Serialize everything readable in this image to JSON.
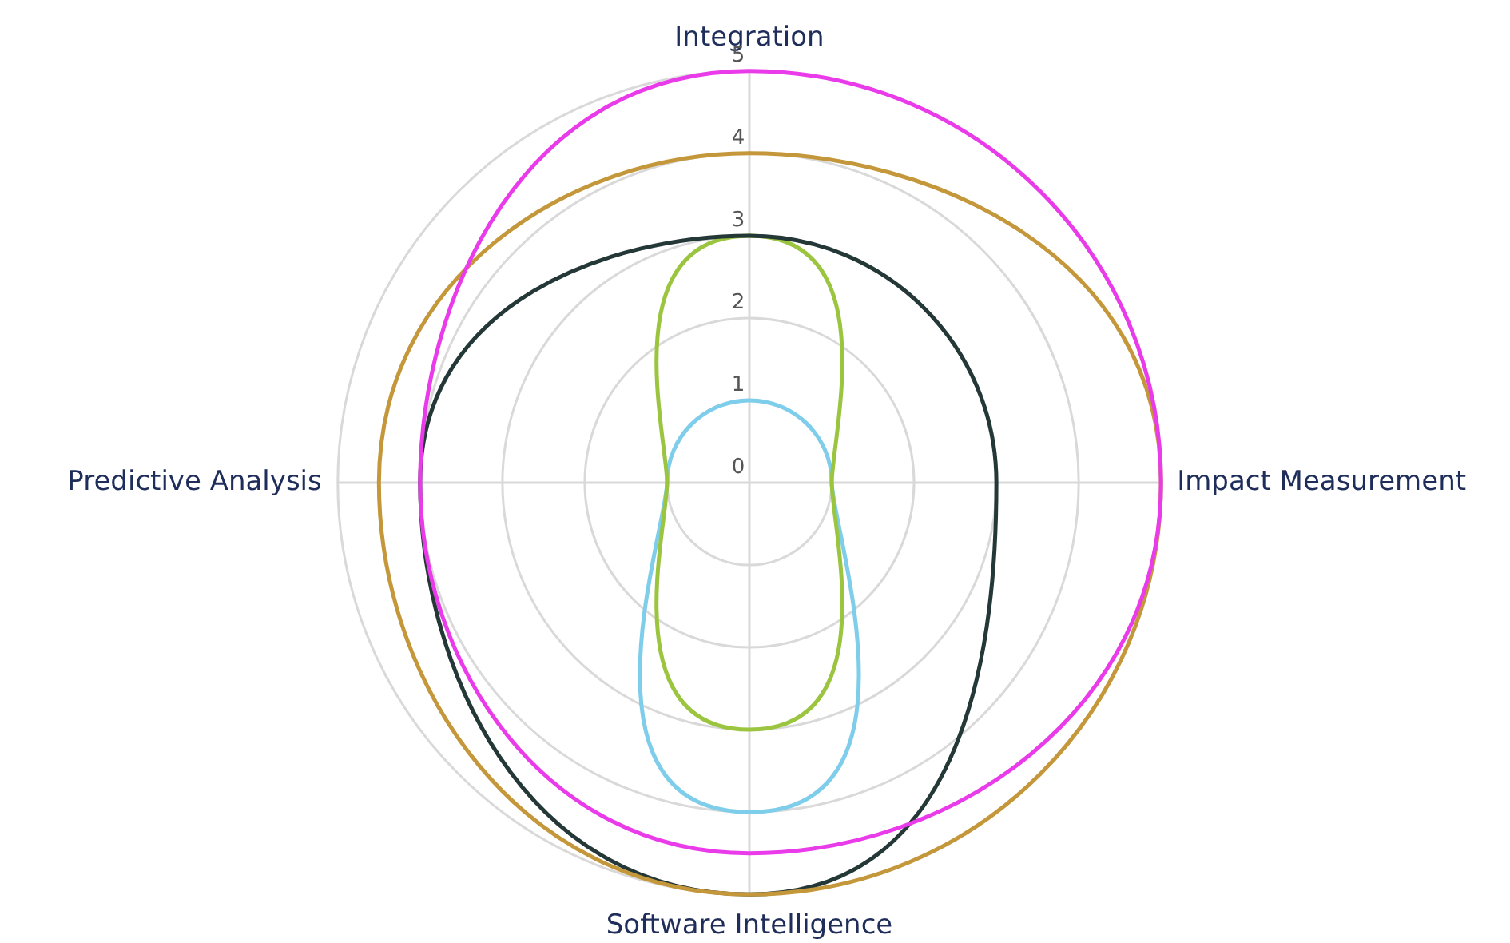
{
  "chart_data": {
    "type": "radar",
    "categories": [
      "Integration",
      "Impact Measurement",
      "Software Intelligence",
      "Predictive Analysis"
    ],
    "series": [
      {
        "color": "#e93be9",
        "values": [
          5,
          5,
          4.5,
          4
        ]
      },
      {
        "color": "#c4973a",
        "values": [
          4,
          5,
          5,
          4.5
        ]
      },
      {
        "color": "#253838",
        "values": [
          3,
          3,
          5,
          4
        ]
      },
      {
        "color": "#9bc43f",
        "values": [
          3,
          1,
          3,
          1
        ]
      },
      {
        "color": "#7ecdea",
        "values": [
          1,
          1,
          4,
          1
        ]
      }
    ],
    "ylim": [
      0,
      5
    ],
    "yticks": [
      0,
      1,
      2,
      3,
      4,
      5
    ],
    "grid": true,
    "marker": "none",
    "line_style": "solid"
  }
}
